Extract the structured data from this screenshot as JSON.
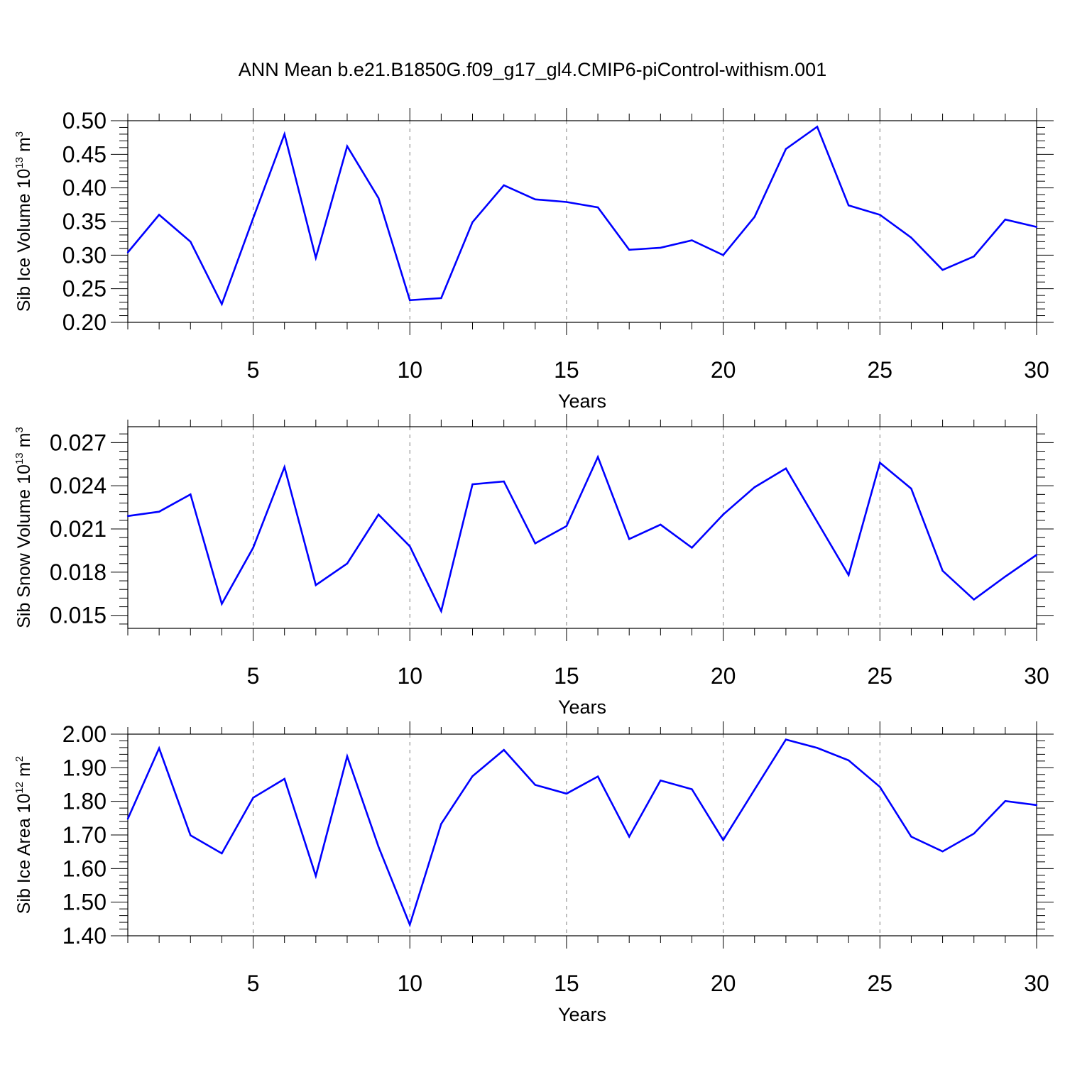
{
  "title": "ANN Mean b.e21.B1850G.f09_g17_gl4.CMIP6-piControl-withism.001",
  "colors": {
    "series": "#0000ff",
    "axis": "#000000",
    "grid": "#808080"
  },
  "chart_data": [
    {
      "type": "line",
      "ylabel": {
        "text": "Sib Ice Volume 10",
        "exp": "13",
        "unit": " m",
        "unit_exp": "3"
      },
      "xlabel": "Years",
      "xlim": [
        1,
        30
      ],
      "ylim": [
        0.2,
        0.5
      ],
      "xticks": [
        5,
        10,
        15,
        20,
        25,
        30
      ],
      "yticks": [
        0.2,
        0.25,
        0.3,
        0.35,
        0.4,
        0.45,
        0.5
      ],
      "ytick_labels": [
        "0.20",
        "0.25",
        "0.30",
        "0.35",
        "0.40",
        "0.45",
        "0.50"
      ],
      "grid": "vertical dashed at major x ticks",
      "x": [
        1,
        2,
        3,
        4,
        5,
        6,
        7,
        8,
        9,
        10,
        11,
        12,
        13,
        14,
        15,
        16,
        17,
        18,
        19,
        20,
        21,
        22,
        23,
        24,
        25,
        26,
        27,
        28,
        29,
        30
      ],
      "y": [
        0.304,
        0.36,
        0.32,
        0.227,
        0.355,
        0.48,
        0.296,
        0.462,
        0.385,
        0.233,
        0.236,
        0.349,
        0.404,
        0.383,
        0.379,
        0.371,
        0.308,
        0.311,
        0.322,
        0.3,
        0.357,
        0.458,
        0.491,
        0.374,
        0.36,
        0.326,
        0.278,
        0.298,
        0.353,
        0.342
      ]
    },
    {
      "type": "line",
      "ylabel": {
        "text": "Sib Snow Volume 10",
        "exp": "13",
        "unit": " m",
        "unit_exp": "3"
      },
      "xlabel": "Years",
      "xlim": [
        1,
        30
      ],
      "ylim": [
        0.0141,
        0.0281
      ],
      "xticks": [
        5,
        10,
        15,
        20,
        25,
        30
      ],
      "yticks": [
        0.015,
        0.018,
        0.021,
        0.024,
        0.027
      ],
      "ytick_labels": [
        "0.015",
        "0.018",
        "0.021",
        "0.024",
        "0.027"
      ],
      "grid": "vertical dashed at major x ticks",
      "x": [
        1,
        2,
        3,
        4,
        5,
        6,
        7,
        8,
        9,
        10,
        11,
        12,
        13,
        14,
        15,
        16,
        17,
        18,
        19,
        20,
        21,
        22,
        23,
        24,
        25,
        26,
        27,
        28,
        29,
        30
      ],
      "y": [
        0.0219,
        0.0222,
        0.0234,
        0.0158,
        0.0197,
        0.0253,
        0.0171,
        0.0186,
        0.022,
        0.0198,
        0.0153,
        0.0241,
        0.0243,
        0.02,
        0.0212,
        0.026,
        0.0203,
        0.0213,
        0.0197,
        0.022,
        0.0239,
        0.0252,
        0.0215,
        0.0178,
        0.0256,
        0.0238,
        0.0181,
        0.0161,
        0.0177,
        0.0192
      ]
    },
    {
      "type": "line",
      "ylabel": {
        "text": "Sib Ice Area 10",
        "exp": "12",
        "unit": " m",
        "unit_exp": "2"
      },
      "xlabel": "Years",
      "xlim": [
        1,
        30
      ],
      "ylim": [
        1.4,
        2.0
      ],
      "xticks": [
        5,
        10,
        15,
        20,
        25,
        30
      ],
      "yticks": [
        1.4,
        1.5,
        1.6,
        1.7,
        1.8,
        1.9,
        2.0
      ],
      "ytick_labels": [
        "1.40",
        "1.50",
        "1.60",
        "1.70",
        "1.80",
        "1.90",
        "2.00"
      ],
      "grid": "vertical dashed at major x ticks",
      "x": [
        1,
        2,
        3,
        4,
        5,
        6,
        7,
        8,
        9,
        10,
        11,
        12,
        13,
        14,
        15,
        16,
        17,
        18,
        19,
        20,
        21,
        22,
        23,
        24,
        25,
        26,
        27,
        28,
        29,
        30
      ],
      "y": [
        1.748,
        1.958,
        1.699,
        1.645,
        1.811,
        1.867,
        1.578,
        1.934,
        1.665,
        1.433,
        1.733,
        1.875,
        1.953,
        1.849,
        1.823,
        1.874,
        1.695,
        1.862,
        1.836,
        1.685,
        1.835,
        1.984,
        1.959,
        1.922,
        1.843,
        1.695,
        1.651,
        1.704,
        1.801,
        1.789
      ]
    }
  ]
}
